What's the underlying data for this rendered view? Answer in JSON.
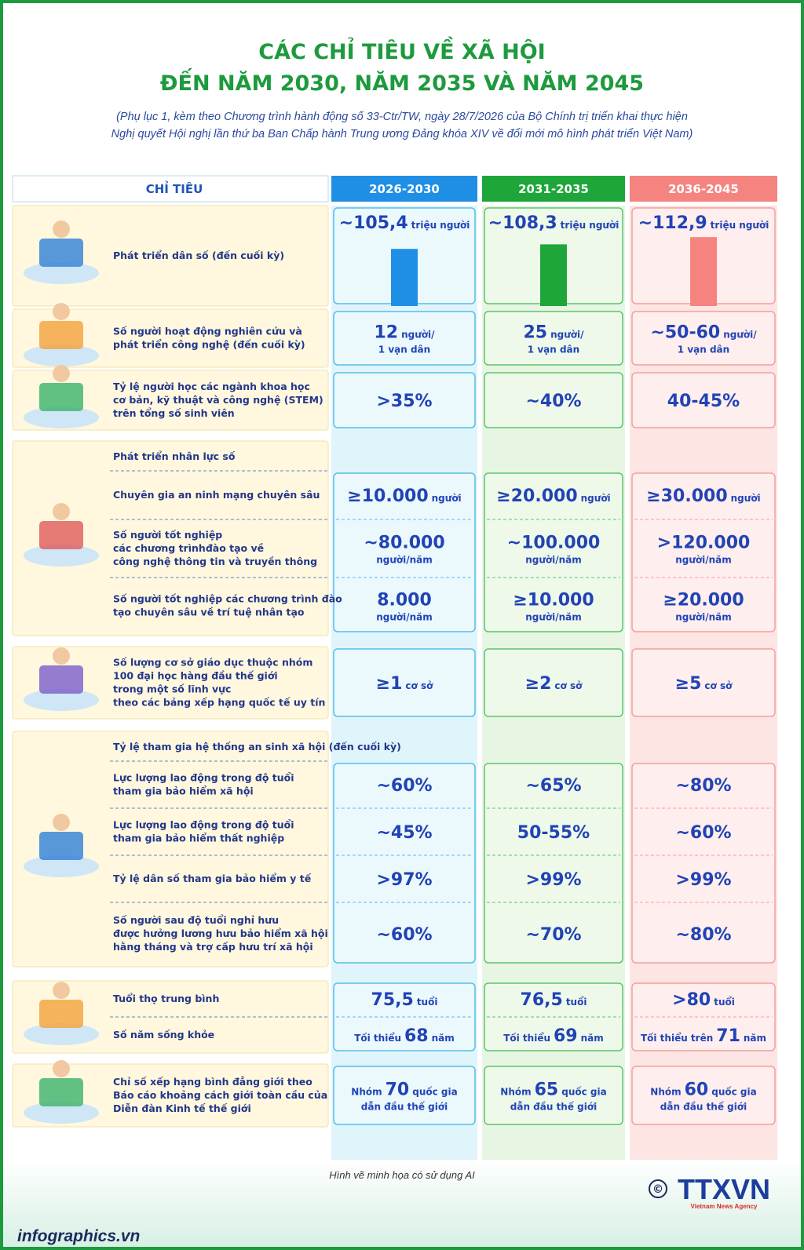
{
  "header": {
    "title_lines": [
      "CÁC CHỈ TIÊU VỀ XÃ HỘI",
      "ĐẾN NĂM 2030, NĂM 2035 VÀ NĂM 2045"
    ],
    "subtitle_lines": [
      "(Phụ lục 1, kèm theo Chương trình hành động số 33-Ctr/TW, ngày 28/7/2026 của Bộ Chính trị triển khai thực hiện",
      "Nghị quyết Hội nghị lần thứ ba Ban Chấp hành Trung ương Đảng khóa XIV về đổi mới mô hình phát triển Việt Nam)"
    ]
  },
  "table": {
    "columns": [
      "CHỈ TIÊU",
      "2026-2030",
      "2031-2035",
      "2036-2045"
    ],
    "sections": [
      {
        "rows": [
          {
            "label_lines": [
              "Phát triển dân số (đến cuối kỳ)"
            ],
            "cells": [
              {
                "value": 105.4,
                "lines": [
                  [
                    {
                      "big": "~105,4"
                    },
                    {
                      "small": "triệu người"
                    }
                  ]
                ]
              },
              {
                "value": 108.3,
                "lines": [
                  [
                    {
                      "big": "~108,3"
                    },
                    {
                      "small": "triệu người"
                    }
                  ]
                ]
              },
              {
                "value": 112.9,
                "lines": [
                  [
                    {
                      "big": "~112,9"
                    },
                    {
                      "small": "triệu người"
                    }
                  ]
                ]
              }
            ]
          }
        ]
      },
      {
        "rows": [
          {
            "label_lines": [
              "Số người hoạt động nghiên cứu và",
              "phát triển công nghệ (đến cuối kỳ)"
            ],
            "cells": [
              {
                "lines": [
                  [
                    {
                      "big": "12"
                    },
                    {
                      "small": "người/"
                    }
                  ],
                  [
                    {
                      "small": "1 vạn dân"
                    }
                  ]
                ]
              },
              {
                "lines": [
                  [
                    {
                      "big": "25"
                    },
                    {
                      "small": "người/"
                    }
                  ],
                  [
                    {
                      "small": "1 vạn dân"
                    }
                  ]
                ]
              },
              {
                "lines": [
                  [
                    {
                      "big": "~50-60"
                    },
                    {
                      "small": "người/"
                    }
                  ],
                  [
                    {
                      "small": "1 vạn dân"
                    }
                  ]
                ]
              }
            ]
          }
        ]
      },
      {
        "rows": [
          {
            "label_lines": [
              "Tỷ lệ người học các ngành khoa học",
              "cơ bản, kỹ thuật và công nghệ (STEM)",
              "trên tổng số sinh viên"
            ],
            "cells": [
              {
                "lines": [
                  [
                    {
                      "big": ">35%"
                    }
                  ]
                ]
              },
              {
                "lines": [
                  [
                    {
                      "big": "~40%"
                    }
                  ]
                ]
              },
              {
                "lines": [
                  [
                    {
                      "big": "40-45%"
                    }
                  ]
                ]
              }
            ]
          }
        ]
      },
      {
        "heading": "Phát triển nhân lực số",
        "rows": [
          {
            "label_lines": [
              "Chuyên gia an ninh mạng chuyên sâu"
            ],
            "cells": [
              {
                "lines": [
                  [
                    {
                      "big": "≥10.000"
                    },
                    {
                      "small": "người"
                    }
                  ]
                ]
              },
              {
                "lines": [
                  [
                    {
                      "big": "≥20.000"
                    },
                    {
                      "small": "người"
                    }
                  ]
                ]
              },
              {
                "lines": [
                  [
                    {
                      "big": "≥30.000"
                    },
                    {
                      "small": "người"
                    }
                  ]
                ]
              }
            ]
          },
          {
            "label_lines": [
              "Số người tốt nghiệp",
              "các chương trìnhđào tạo về",
              "công nghệ thông tin và truyền thông"
            ],
            "cells": [
              {
                "lines": [
                  [
                    {
                      "big": "~80.000"
                    }
                  ],
                  [
                    {
                      "small": "người/năm"
                    }
                  ]
                ]
              },
              {
                "lines": [
                  [
                    {
                      "big": "~100.000"
                    }
                  ],
                  [
                    {
                      "small": "người/năm"
                    }
                  ]
                ]
              },
              {
                "lines": [
                  [
                    {
                      "big": ">120.000"
                    }
                  ],
                  [
                    {
                      "small": "người/năm"
                    }
                  ]
                ]
              }
            ]
          },
          {
            "label_lines": [
              "Số người tốt nghiệp các chương trình đào",
              "tạo chuyên sâu về trí tuệ nhân tạo"
            ],
            "cells": [
              {
                "lines": [
                  [
                    {
                      "big": "8.000"
                    }
                  ],
                  [
                    {
                      "small": "người/năm"
                    }
                  ]
                ]
              },
              {
                "lines": [
                  [
                    {
                      "big": "≥10.000"
                    }
                  ],
                  [
                    {
                      "small": "người/năm"
                    }
                  ]
                ]
              },
              {
                "lines": [
                  [
                    {
                      "big": "≥20.000"
                    }
                  ],
                  [
                    {
                      "small": "người/năm"
                    }
                  ]
                ]
              }
            ]
          }
        ]
      },
      {
        "rows": [
          {
            "label_lines": [
              "Số lượng cơ sở giáo dục thuộc nhóm",
              "100 đại học hàng đầu thế giới",
              "trong một số lĩnh vực",
              "theo các bảng xếp hạng quốc tế uy tín"
            ],
            "cells": [
              {
                "lines": [
                  [
                    {
                      "big": "≥1"
                    },
                    {
                      "small": "cơ sở"
                    }
                  ]
                ]
              },
              {
                "lines": [
                  [
                    {
                      "big": "≥2"
                    },
                    {
                      "small": "cơ sở"
                    }
                  ]
                ]
              },
              {
                "lines": [
                  [
                    {
                      "big": "≥5"
                    },
                    {
                      "small": "cơ sở"
                    }
                  ]
                ]
              }
            ]
          }
        ]
      },
      {
        "heading": "Tỷ lệ tham gia hệ thống an sinh xã hội (đến cuối kỳ)",
        "rows": [
          {
            "label_lines": [
              "Lực lượng lao động trong độ tuổi",
              "tham gia bảo hiểm xã hội"
            ],
            "cells": [
              {
                "lines": [
                  [
                    {
                      "big": "~60%"
                    }
                  ]
                ]
              },
              {
                "lines": [
                  [
                    {
                      "big": "~65%"
                    }
                  ]
                ]
              },
              {
                "lines": [
                  [
                    {
                      "big": "~80%"
                    }
                  ]
                ]
              }
            ]
          },
          {
            "label_lines": [
              "Lực lượng lao động trong độ tuổi",
              "tham gia bảo hiểm thất nghiệp"
            ],
            "cells": [
              {
                "lines": [
                  [
                    {
                      "big": "~45%"
                    }
                  ]
                ]
              },
              {
                "lines": [
                  [
                    {
                      "big": "50-55%"
                    }
                  ]
                ]
              },
              {
                "lines": [
                  [
                    {
                      "big": "~60%"
                    }
                  ]
                ]
              }
            ]
          },
          {
            "label_lines": [
              "Tỷ lệ dân số tham gia bảo hiểm y tế"
            ],
            "cells": [
              {
                "lines": [
                  [
                    {
                      "big": ">97%"
                    }
                  ]
                ]
              },
              {
                "lines": [
                  [
                    {
                      "big": ">99%"
                    }
                  ]
                ]
              },
              {
                "lines": [
                  [
                    {
                      "big": ">99%"
                    }
                  ]
                ]
              }
            ]
          },
          {
            "label_lines": [
              "Số người sau độ tuổi nghỉ hưu",
              "được hưởng lương hưu bảo hiểm xã hội",
              "hằng tháng và trợ cấp hưu trí xã hội"
            ],
            "cells": [
              {
                "lines": [
                  [
                    {
                      "big": "~60%"
                    }
                  ]
                ]
              },
              {
                "lines": [
                  [
                    {
                      "big": "~70%"
                    }
                  ]
                ]
              },
              {
                "lines": [
                  [
                    {
                      "big": "~80%"
                    }
                  ]
                ]
              }
            ]
          }
        ]
      },
      {
        "rows": [
          {
            "label_lines": [
              "Tuổi thọ trung bình"
            ],
            "cells": [
              {
                "lines": [
                  [
                    {
                      "big": "75,5"
                    },
                    {
                      "small": "tuổi"
                    }
                  ]
                ]
              },
              {
                "lines": [
                  [
                    {
                      "big": "76,5"
                    },
                    {
                      "small": "tuổi"
                    }
                  ]
                ]
              },
              {
                "lines": [
                  [
                    {
                      "big": ">80"
                    },
                    {
                      "small": "tuổi"
                    }
                  ]
                ]
              }
            ]
          },
          {
            "label_lines": [
              "Số năm sống khỏe"
            ],
            "cells": [
              {
                "lines": [
                  [
                    {
                      "small": "Tối thiểu"
                    },
                    {
                      "big": "68"
                    },
                    {
                      "small": "năm"
                    }
                  ]
                ]
              },
              {
                "lines": [
                  [
                    {
                      "small": "Tối thiểu"
                    },
                    {
                      "big": "69"
                    },
                    {
                      "small": "năm"
                    }
                  ]
                ]
              },
              {
                "lines": [
                  [
                    {
                      "small": "Tối thiểu trên"
                    },
                    {
                      "big": "71"
                    },
                    {
                      "small": "năm"
                    }
                  ]
                ]
              }
            ]
          }
        ]
      },
      {
        "rows": [
          {
            "label_lines": [
              "Chỉ số xếp hạng bình đẳng giới theo",
              "Báo cáo khoảng cách giới toàn cầu của",
              "Diễn đàn Kinh tế thế giới"
            ],
            "cells": [
              {
                "lines": [
                  [
                    {
                      "small": "Nhóm"
                    },
                    {
                      "big": "70"
                    },
                    {
                      "small": "quốc gia"
                    }
                  ],
                  [
                    {
                      "small": "dẫn đầu thế giới"
                    }
                  ]
                ]
              },
              {
                "lines": [
                  [
                    {
                      "small": "Nhóm"
                    },
                    {
                      "big": "65"
                    },
                    {
                      "small": "quốc gia"
                    }
                  ],
                  [
                    {
                      "small": "dẫn đầu thế giới"
                    }
                  ]
                ]
              },
              {
                "lines": [
                  [
                    {
                      "small": "Nhóm"
                    },
                    {
                      "big": "60"
                    },
                    {
                      "small": "quốc gia"
                    }
                  ],
                  [
                    {
                      "small": "dẫn đầu thế giới"
                    }
                  ]
                ]
              }
            ]
          }
        ]
      }
    ]
  },
  "footer": {
    "note": "Hình vẽ minh họa có sử dụng AI",
    "site": "infographics.vn",
    "copyright": "©",
    "logo": "TTXVN",
    "agency": "Vietnam News Agency"
  }
}
